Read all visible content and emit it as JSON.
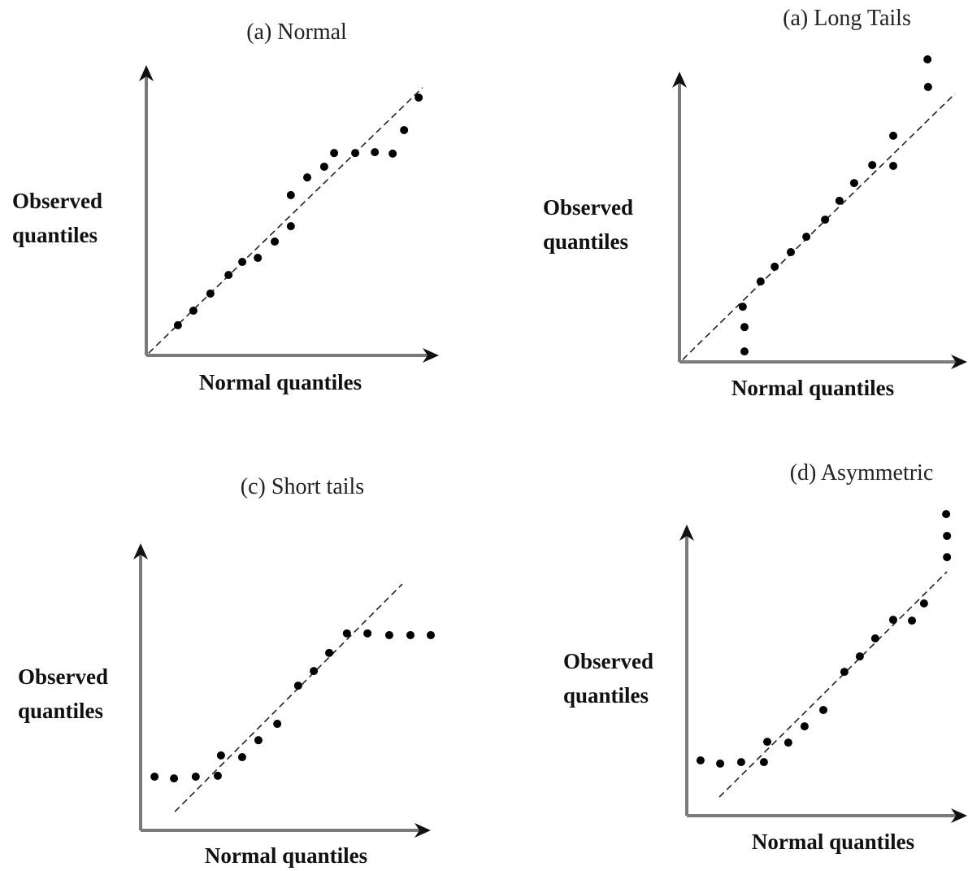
{
  "chart_data": [
    {
      "type": "scatter",
      "title": "(a) Normal",
      "x_label": "Normal quantiles",
      "y_label": "Observed quantiles",
      "color": "#000000",
      "x": [
        10.8,
        16.1,
        21.9,
        28.1,
        32.8,
        38.1,
        43.9,
        49.4,
        49.4,
        55,
        60.8,
        64.2,
        71.4,
        78.1,
        84.2,
        88.1,
        93.1
      ],
      "y": [
        10.4,
        15.4,
        21.3,
        27.7,
        32.2,
        33.6,
        39.2,
        44.5,
        55.2,
        61.3,
        65,
        69.7,
        69.7,
        70,
        69.5,
        77.6,
        88.8
      ],
      "xlim": [
        0,
        100
      ],
      "ylim": [
        0,
        100
      ],
      "reference_line": {
        "x": [
          0.8,
          94.4
        ],
        "y": [
          0.8,
          92.2
        ]
      }
    },
    {
      "type": "scatter",
      "title": "(a) Long Tails",
      "x_label": "Normal quantiles",
      "y_label": "Observed quantiles",
      "color": "#000000",
      "x": [
        22.6,
        22.6,
        22,
        28.2,
        33.1,
        38.7,
        44.1,
        50.6,
        55.6,
        60.7,
        67,
        74.3,
        74.3,
        86.4,
        86.2
      ],
      "y": [
        3.6,
        12,
        19,
        27.7,
        32.8,
        37.8,
        43.1,
        49,
        55.5,
        61.6,
        67.8,
        67.5,
        77.9,
        94.7,
        104.2
      ],
      "xlim": [
        0,
        100
      ],
      "ylim": [
        0,
        100
      ],
      "reference_line": {
        "x": [
          1.1,
          95.8
        ],
        "y": [
          0.8,
          92.4
        ]
      }
    },
    {
      "type": "scatter",
      "title": "(c) Short tails",
      "x_label": "Normal quantiles",
      "y_label": "Observed quantiles",
      "color": "#000000",
      "x": [
        4.8,
        11.5,
        19,
        26.6,
        27.7,
        35,
        40.6,
        47.1,
        54.3,
        59.7,
        65,
        71.1,
        78.2,
        85.7,
        93,
        100
      ],
      "y": [
        18.7,
        18.1,
        18.7,
        19,
        26.1,
        25.5,
        31.4,
        37.1,
        50.4,
        55.5,
        61.8,
        68.6,
        68.6,
        68,
        68,
        68
      ],
      "xlim": [
        0,
        100
      ],
      "ylim": [
        0,
        100
      ],
      "reference_line": {
        "x": [
          11.8,
          90.2
        ],
        "y": [
          6.5,
          85.8
        ]
      }
    },
    {
      "type": "scatter",
      "title": "(d) Asymmetric",
      "x_label": "Normal quantiles",
      "y_label": "Observed quantiles",
      "color": "#000000",
      "x": [
        4.9,
        11.9,
        19.4,
        27.5,
        28.7,
        36.2,
        42,
        48.7,
        56.2,
        61.7,
        67.2,
        73.6,
        80.3,
        84.6,
        92.8,
        92.8,
        92.5
      ],
      "y": [
        19,
        17.9,
        18.4,
        18.4,
        25.4,
        25.1,
        30.7,
        36.3,
        49.4,
        54.7,
        60.9,
        67.3,
        67,
        72.9,
        88.8,
        96.1,
        103.6
      ],
      "xlim": [
        0,
        100
      ],
      "ylim": [
        0,
        100
      ],
      "reference_line": {
        "x": [
          11.6,
          92.8
        ],
        "y": [
          6.4,
          83.8
        ]
      }
    }
  ]
}
